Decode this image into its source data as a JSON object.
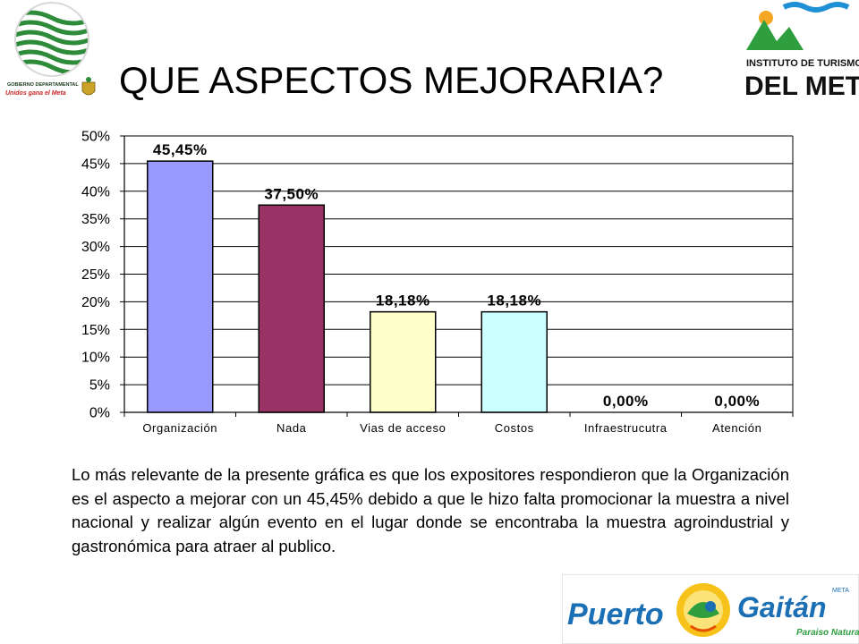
{
  "title": "QUE ASPECTOS MEJORARIA?",
  "logos": {
    "left": {
      "line1": "GOBIERNO DEPARTAMENTAL",
      "line2": "Unidos gana el Meta"
    },
    "right": {
      "line1": "INSTITUTO DE TURISMO",
      "line2": "DEL META"
    },
    "bottom": {
      "word1": "Puerto",
      "word2": "Gaitán",
      "small": "META",
      "tagline": "Paraiso Natural"
    }
  },
  "chart_data": {
    "type": "bar",
    "title": "",
    "xlabel": "",
    "ylabel": "",
    "categories": [
      "Organización",
      "Nada",
      "Vias de acceso",
      "Costos",
      "Infraestrucutra",
      "Atención"
    ],
    "values": [
      45.45,
      37.5,
      18.18,
      18.18,
      0.0,
      0.0
    ],
    "data_labels": [
      "45,45%",
      "37,50%",
      "18,18%",
      "18,18%",
      "0,00%",
      "0,00%"
    ],
    "yticks": [
      "0%",
      "5%",
      "10%",
      "15%",
      "20%",
      "25%",
      "30%",
      "35%",
      "40%",
      "45%",
      "50%"
    ],
    "ylim": [
      0,
      50
    ],
    "grid": true,
    "legend": false,
    "colors": [
      "#9999ff",
      "#993366",
      "#ffffcc",
      "#ccffff",
      "#ffffff",
      "#ffffff"
    ]
  },
  "description": "Lo más relevante de la presente gráfica es que los expositores respondieron que la Organización es el aspecto a mejorar con un 45,45% debido a que le hizo falta promocionar la muestra a nivel nacional y realizar algún evento en el lugar donde se encontraba la muestra agroindustrial y gastronómica para atraer al publico."
}
